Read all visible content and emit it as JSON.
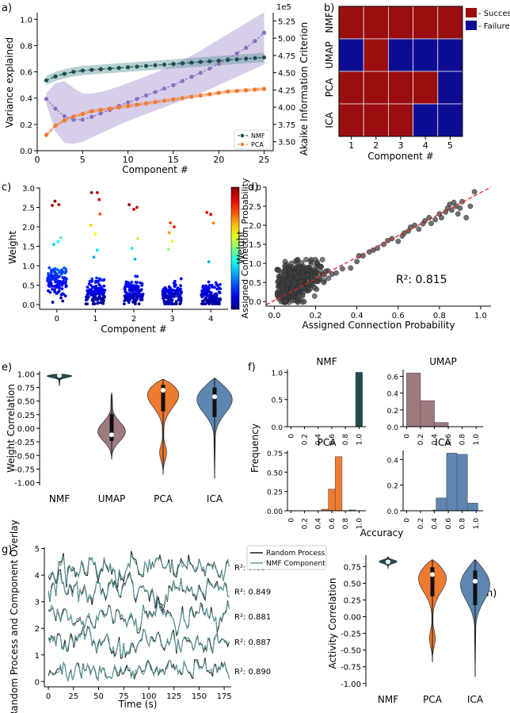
{
  "panel_labels": [
    "a)",
    "b)",
    "c)",
    "d)",
    "e)",
    "f)",
    "g)",
    "(h)"
  ],
  "colors": {
    "nmf": "#1f4e50",
    "nmf_band": "#5e9a9c",
    "pca": "#ef7b30",
    "aic": "#8a6fbd",
    "aic_band": "#c9bde3",
    "umap": "#9e7a7f",
    "ica": "#5d86b0",
    "success": "#9b0e10",
    "failure": "#0d0d94",
    "scatter": "#404040",
    "fit": "#e8231f",
    "random": "#1a1a1a"
  },
  "chart_data": [
    {
      "panel": "a",
      "type": "line",
      "xlabel": "Component #",
      "ylabel": "Variance explained",
      "y2label": "Akaike Information Criterion",
      "y2_multiplier": "1e5",
      "xlim": [
        0,
        26
      ],
      "ylim": [
        0,
        1.05
      ],
      "y2lim": [
        3.37,
        5.37
      ],
      "xticks": [
        0,
        5,
        10,
        15,
        20,
        25
      ],
      "yticks": [
        "0.0",
        "0.2",
        "0.4",
        "0.6",
        "0.8",
        "1.0"
      ],
      "y2ticks": [
        "3.50",
        "3.75",
        "4.00",
        "4.25",
        "4.50",
        "4.75",
        "5.00",
        "5.25"
      ],
      "x": [
        1,
        2,
        3,
        4,
        5,
        6,
        7,
        8,
        9,
        10,
        11,
        12,
        13,
        14,
        15,
        16,
        17,
        18,
        19,
        20,
        21,
        22,
        23,
        24,
        25
      ],
      "series": [
        {
          "name": "NMF",
          "axis": "left",
          "values": [
            0.535,
            0.565,
            0.585,
            0.6,
            0.61,
            0.615,
            0.62,
            0.625,
            0.63,
            0.635,
            0.64,
            0.645,
            0.65,
            0.655,
            0.66,
            0.665,
            0.67,
            0.675,
            0.68,
            0.685,
            0.69,
            0.695,
            0.7,
            0.705,
            0.71
          ],
          "band": 0.035
        },
        {
          "name": "PCA",
          "axis": "left",
          "values": [
            0.12,
            0.19,
            0.23,
            0.26,
            0.28,
            0.3,
            0.31,
            0.32,
            0.33,
            0.34,
            0.35,
            0.36,
            0.37,
            0.38,
            0.39,
            0.4,
            0.41,
            0.42,
            0.43,
            0.44,
            0.45,
            0.455,
            0.46,
            0.465,
            0.47
          ],
          "band": 0.015
        },
        {
          "name": "",
          "axis": "right",
          "values": [
            4.12,
            3.98,
            3.87,
            3.82,
            3.82,
            3.86,
            3.91,
            3.96,
            4.02,
            4.07,
            4.12,
            4.17,
            4.22,
            4.27,
            4.32,
            4.38,
            4.44,
            4.5,
            4.56,
            4.63,
            4.7,
            4.78,
            4.86,
            4.96,
            5.08
          ],
          "band_lo": [
            4.05,
            3.65,
            3.48,
            3.47,
            3.5,
            3.56,
            3.62,
            3.68,
            3.74,
            3.8,
            3.85,
            3.9,
            3.95,
            4.0,
            4.05,
            4.1,
            4.15,
            4.2,
            4.26,
            4.32,
            4.38,
            4.44,
            4.5,
            4.56,
            4.62
          ],
          "band_hi": [
            4.2,
            4.35,
            4.38,
            4.28,
            4.2,
            4.2,
            4.22,
            4.26,
            4.3,
            4.35,
            4.4,
            4.45,
            4.5,
            4.56,
            4.62,
            4.68,
            4.75,
            4.82,
            4.9,
            4.98,
            5.06,
            5.14,
            5.22,
            5.3,
            5.37
          ]
        }
      ],
      "legend": "lower-right"
    },
    {
      "panel": "b",
      "type": "heatmap",
      "xlabel": "Component #",
      "xticks": [
        "1",
        "2",
        "3",
        "4",
        "5"
      ],
      "rows": [
        "NMF",
        "UMAP",
        "PCA",
        "ICA"
      ],
      "values": [
        [
          1,
          1,
          1,
          1,
          1
        ],
        [
          0,
          1,
          0,
          0,
          0
        ],
        [
          1,
          1,
          1,
          1,
          0
        ],
        [
          1,
          1,
          1,
          0,
          0
        ]
      ],
      "legend": [
        "- Success",
        "- Failure"
      ]
    },
    {
      "panel": "c",
      "type": "scatter",
      "xlabel": "Component #",
      "ylabel": "Weight",
      "colorbar_label": "Assigned Connection Probability",
      "xticks": [
        "0",
        "1",
        "2",
        "3",
        "4"
      ],
      "yticks": [
        "0.0",
        "0.5",
        "1.0",
        "1.5",
        "2.0",
        "2.5",
        "3.0"
      ],
      "xlim": [
        -0.45,
        4.45
      ],
      "ylim": [
        -0.12,
        3.02
      ],
      "highlights": [
        {
          "x": -0.12,
          "y": 2.55,
          "p": 0.97
        },
        {
          "x": -0.05,
          "y": 2.66,
          "p": 0.98
        },
        {
          "x": 0.05,
          "y": 2.57,
          "p": 0.95
        },
        {
          "x": 0.1,
          "y": 1.72,
          "p": 0.45
        },
        {
          "x": 0.03,
          "y": 1.62,
          "p": 0.38
        },
        {
          "x": -0.08,
          "y": 1.55,
          "p": 0.33
        },
        {
          "x": 0.9,
          "y": 2.88,
          "p": 0.98
        },
        {
          "x": 1.05,
          "y": 2.88,
          "p": 0.97
        },
        {
          "x": 1.1,
          "y": 2.7,
          "p": 0.92
        },
        {
          "x": 1.12,
          "y": 2.33,
          "p": 0.8
        },
        {
          "x": 0.88,
          "y": 2.04,
          "p": 0.67
        },
        {
          "x": 1.0,
          "y": 1.82,
          "p": 0.62
        },
        {
          "x": 1.05,
          "y": 1.4,
          "p": 0.35
        },
        {
          "x": 0.96,
          "y": 1.22,
          "p": 0.3
        },
        {
          "x": 1.88,
          "y": 2.57,
          "p": 0.97
        },
        {
          "x": 2.0,
          "y": 2.45,
          "p": 0.9
        },
        {
          "x": 2.08,
          "y": 2.5,
          "p": 0.94
        },
        {
          "x": 2.1,
          "y": 1.7,
          "p": 0.55
        },
        {
          "x": 1.95,
          "y": 1.45,
          "p": 0.36
        },
        {
          "x": 2.03,
          "y": 1.17,
          "p": 0.3
        },
        {
          "x": 2.95,
          "y": 2.1,
          "p": 0.82
        },
        {
          "x": 3.05,
          "y": 2.0,
          "p": 0.85
        },
        {
          "x": 2.92,
          "y": 1.85,
          "p": 0.72
        },
        {
          "x": 3.0,
          "y": 1.62,
          "p": 0.6
        },
        {
          "x": 2.9,
          "y": 1.42,
          "p": 0.52
        },
        {
          "x": 3.9,
          "y": 2.37,
          "p": 0.9
        },
        {
          "x": 4.0,
          "y": 2.32,
          "p": 0.88
        },
        {
          "x": 4.07,
          "y": 2.1,
          "p": 0.75
        },
        {
          "x": 3.95,
          "y": 1.1,
          "p": 0.3
        }
      ],
      "cluster": {
        "points_per_component": 120,
        "center_weight": [
          0.62,
          0.3,
          0.3,
          0.27,
          0.25
        ]
      }
    },
    {
      "panel": "d",
      "type": "scatter",
      "xlabel": "Assigned Connection Probability",
      "ylabel": "Weight",
      "xticks": [
        "0.0",
        "0.2",
        "0.4",
        "0.6",
        "0.8",
        "1.0"
      ],
      "yticks": [
        "0.0",
        "0.5",
        "1.0",
        "1.5",
        "2.0",
        "2.5",
        "3.0"
      ],
      "xlim": [
        -0.04,
        1.05
      ],
      "ylim": [
        -0.12,
        3.0
      ],
      "fit": {
        "intercept": 0.03,
        "slope": 2.88
      },
      "annotation": "R²: 0.815",
      "points": [
        [
          0.25,
          0.8
        ],
        [
          0.28,
          0.72
        ],
        [
          0.3,
          0.75
        ],
        [
          0.33,
          0.86
        ],
        [
          0.37,
          0.88
        ],
        [
          0.4,
          1.05
        ],
        [
          0.41,
          1.2
        ],
        [
          0.43,
          1.2
        ],
        [
          0.46,
          1.3
        ],
        [
          0.48,
          1.35
        ],
        [
          0.5,
          1.4
        ],
        [
          0.53,
          1.5
        ],
        [
          0.55,
          1.6
        ],
        [
          0.57,
          1.65
        ],
        [
          0.6,
          1.58
        ],
        [
          0.62,
          1.72
        ],
        [
          0.63,
          1.8
        ],
        [
          0.65,
          1.85
        ],
        [
          0.66,
          1.95
        ],
        [
          0.68,
          2.0
        ],
        [
          0.7,
          1.9
        ],
        [
          0.72,
          2.04
        ],
        [
          0.73,
          2.12
        ],
        [
          0.75,
          2.2
        ],
        [
          0.76,
          2.05
        ],
        [
          0.78,
          2.15
        ],
        [
          0.8,
          2.3
        ],
        [
          0.81,
          2.2
        ],
        [
          0.83,
          2.35
        ],
        [
          0.84,
          2.45
        ],
        [
          0.85,
          2.55
        ],
        [
          0.86,
          2.4
        ],
        [
          0.87,
          2.6
        ],
        [
          0.88,
          2.5
        ],
        [
          0.89,
          2.3
        ],
        [
          0.9,
          2.45
        ],
        [
          0.91,
          2.62
        ],
        [
          0.93,
          2.2
        ],
        [
          0.95,
          2.5
        ],
        [
          0.97,
          2.88
        ],
        [
          0.2,
          0.55
        ],
        [
          0.22,
          0.6
        ],
        [
          0.18,
          0.62
        ],
        [
          0.16,
          0.7
        ],
        [
          0.24,
          0.5
        ]
      ],
      "cluster_count": 520
    },
    {
      "panel": "e",
      "type": "violin",
      "ylabel": "Weight Correlation",
      "categories": [
        "NMF",
        "UMAP",
        "PCA",
        "ICA"
      ],
      "yticks": [
        "1.00",
        "0.75",
        "0.50",
        "0.25",
        "0.00",
        "-0.25",
        "-0.50",
        "-0.75",
        "-1.00"
      ],
      "ylim": [
        -1.05,
        1.05
      ],
      "violins": [
        {
          "min": 0.78,
          "max": 1.0,
          "median": 0.97
        },
        {
          "min": -0.57,
          "max": 0.65,
          "median": -0.12
        },
        {
          "min": -0.85,
          "max": 0.9,
          "median": 0.7
        },
        {
          "min": -0.92,
          "max": 0.92,
          "median": 0.58
        }
      ]
    },
    {
      "panel": "f",
      "type": "bar",
      "ylabel": "Frequency",
      "xlabel": "Accuracy",
      "xticks": [
        "0",
        "0.2",
        "0.4",
        "0.6",
        "0.8",
        "1.0"
      ],
      "subplots": [
        {
          "title": "NMF",
          "yticks": [
            "0.0",
            "0.5",
            "1.0"
          ],
          "ymax": 1.05,
          "values": [
            0,
            0,
            0,
            0,
            1.0
          ]
        },
        {
          "title": "UMAP",
          "yticks": [
            "0.0",
            "0.2",
            "0.4",
            "0.6"
          ],
          "ymax": 0.68,
          "values": [
            0.64,
            0.31,
            0.05,
            0,
            0
          ]
        },
        {
          "title": "PCA",
          "yticks": [
            "0.00",
            "0.25",
            "0.50",
            "0.75"
          ],
          "ymax": 0.78,
          "values": [
            0,
            0,
            0.02,
            0.28,
            0.7,
            0.01
          ]
        },
        {
          "title": "ICA",
          "yticks": [
            "0.0",
            "0.2",
            "0.4"
          ],
          "ymax": 0.47,
          "values": [
            0,
            0,
            0.005,
            0.1,
            0.45,
            0.44,
            0.06
          ]
        }
      ]
    },
    {
      "panel": "g",
      "type": "line",
      "xlabel": "Time (s)",
      "ylabel": "Random Process and Component Overlay",
      "xticks": [
        "0",
        "25",
        "50",
        "75",
        "100",
        "125",
        "150",
        "175"
      ],
      "yticks": [
        "0",
        "1",
        "2",
        "3",
        "4",
        "5"
      ],
      "xlim": [
        -4,
        182
      ],
      "ylim": [
        -0.2,
        5.05
      ],
      "legend": [
        "Random Process",
        "NMF Component"
      ],
      "annotations": [
        "R²: 0.834",
        "R²: 0.849",
        "R²: 0.881",
        "R²: 0.887",
        "R²: 0.890"
      ],
      "trace_offsets": [
        4.3,
        3.4,
        2.45,
        1.5,
        0.4
      ]
    },
    {
      "panel": "h",
      "type": "violin",
      "ylabel": "Activity Correlation",
      "categories": [
        "NMF",
        "PCA",
        "ICA"
      ],
      "yticks": [
        "0.75",
        "0.50",
        "0.25",
        "0.00",
        "-0.25",
        "-0.50",
        "-0.75",
        "-1.00"
      ],
      "ylim": [
        -1.05,
        0.92
      ],
      "violins": [
        {
          "min": 0.72,
          "max": 0.9,
          "median": 0.82
        },
        {
          "min": -0.68,
          "max": 0.85,
          "median": 0.63
        },
        {
          "min": -0.9,
          "max": 0.85,
          "median": 0.53
        }
      ]
    }
  ]
}
